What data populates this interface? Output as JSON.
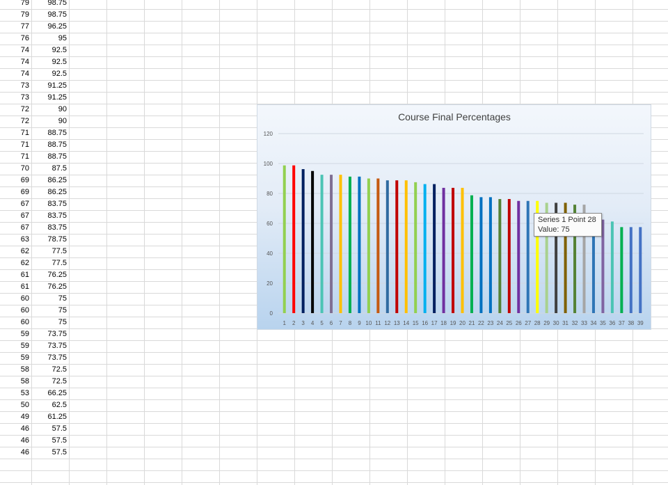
{
  "sheet": {
    "rows": [
      {
        "a": "79",
        "b": "98.75"
      },
      {
        "a": "79",
        "b": "98.75"
      },
      {
        "a": "77",
        "b": "96.25"
      },
      {
        "a": "76",
        "b": "95"
      },
      {
        "a": "74",
        "b": "92.5"
      },
      {
        "a": "74",
        "b": "92.5"
      },
      {
        "a": "74",
        "b": "92.5"
      },
      {
        "a": "73",
        "b": "91.25"
      },
      {
        "a": "73",
        "b": "91.25"
      },
      {
        "a": "72",
        "b": "90"
      },
      {
        "a": "72",
        "b": "90"
      },
      {
        "a": "71",
        "b": "88.75"
      },
      {
        "a": "71",
        "b": "88.75"
      },
      {
        "a": "71",
        "b": "88.75"
      },
      {
        "a": "70",
        "b": "87.5"
      },
      {
        "a": "69",
        "b": "86.25"
      },
      {
        "a": "69",
        "b": "86.25"
      },
      {
        "a": "67",
        "b": "83.75"
      },
      {
        "a": "67",
        "b": "83.75"
      },
      {
        "a": "67",
        "b": "83.75"
      },
      {
        "a": "63",
        "b": "78.75"
      },
      {
        "a": "62",
        "b": "77.5"
      },
      {
        "a": "62",
        "b": "77.5"
      },
      {
        "a": "61",
        "b": "76.25"
      },
      {
        "a": "61",
        "b": "76.25"
      },
      {
        "a": "60",
        "b": "75"
      },
      {
        "a": "60",
        "b": "75"
      },
      {
        "a": "60",
        "b": "75"
      },
      {
        "a": "59",
        "b": "73.75"
      },
      {
        "a": "59",
        "b": "73.75"
      },
      {
        "a": "59",
        "b": "73.75"
      },
      {
        "a": "58",
        "b": "72.5"
      },
      {
        "a": "58",
        "b": "72.5"
      },
      {
        "a": "53",
        "b": "66.25"
      },
      {
        "a": "50",
        "b": "62.5"
      },
      {
        "a": "49",
        "b": "61.25"
      },
      {
        "a": "46",
        "b": "57.5"
      },
      {
        "a": "46",
        "b": "57.5"
      },
      {
        "a": "46",
        "b": "57.5"
      }
    ]
  },
  "chart_data": {
    "type": "bar",
    "title": "Course Final Percentages",
    "xlabel": "",
    "ylabel": "",
    "ylim": [
      0,
      120
    ],
    "y_ticks": [
      0,
      20,
      40,
      60,
      80,
      100,
      120
    ],
    "grid": true,
    "categories": [
      "1",
      "2",
      "3",
      "4",
      "5",
      "6",
      "7",
      "8",
      "9",
      "10",
      "11",
      "12",
      "13",
      "14",
      "15",
      "16",
      "17",
      "18",
      "19",
      "20",
      "21",
      "22",
      "23",
      "24",
      "25",
      "26",
      "27",
      "28",
      "29",
      "30",
      "31",
      "32",
      "33",
      "34",
      "35",
      "36",
      "37",
      "38",
      "39"
    ],
    "series": [
      {
        "values": [
          98.75,
          98.75,
          96.25,
          95,
          92.5,
          92.5,
          92.5,
          91.25,
          91.25,
          90,
          90,
          88.75,
          88.75,
          88.75,
          87.5,
          86.25,
          86.25,
          83.75,
          83.75,
          83.75,
          78.75,
          77.5,
          77.5,
          76.25,
          76.25,
          75,
          75,
          75,
          73.75,
          73.75,
          73.75,
          72.5,
          72.5,
          66.25,
          62.5,
          61.25,
          57.5,
          57.5,
          57.5
        ],
        "colors": [
          "#92d050",
          "#ff0000",
          "#002060",
          "#000000",
          "#4bc4b4",
          "#7f6f93",
          "#ffc000",
          "#00b050",
          "#0070c0",
          "#92d050",
          "#c55a11",
          "#2f6aa0",
          "#c00000",
          "#ffc000",
          "#92d050",
          "#00b0f0",
          "#002060",
          "#7030a0",
          "#c00000",
          "#ffc000",
          "#00b050",
          "#0070c0",
          "#0070c0",
          "#548235",
          "#c00000",
          "#7030a0",
          "#2e75b6",
          "#ffff00",
          "#a9d18e",
          "#404040",
          "#7f6000",
          "#548235",
          "#a5a5a5",
          "#2e75b6",
          "#8064a2",
          "#4bc4b4",
          "#00b050",
          "#4472c4",
          "#4472c4"
        ]
      }
    ]
  },
  "tooltip": {
    "line1": "Series 1 Point 28",
    "line2": "Value: 75"
  }
}
